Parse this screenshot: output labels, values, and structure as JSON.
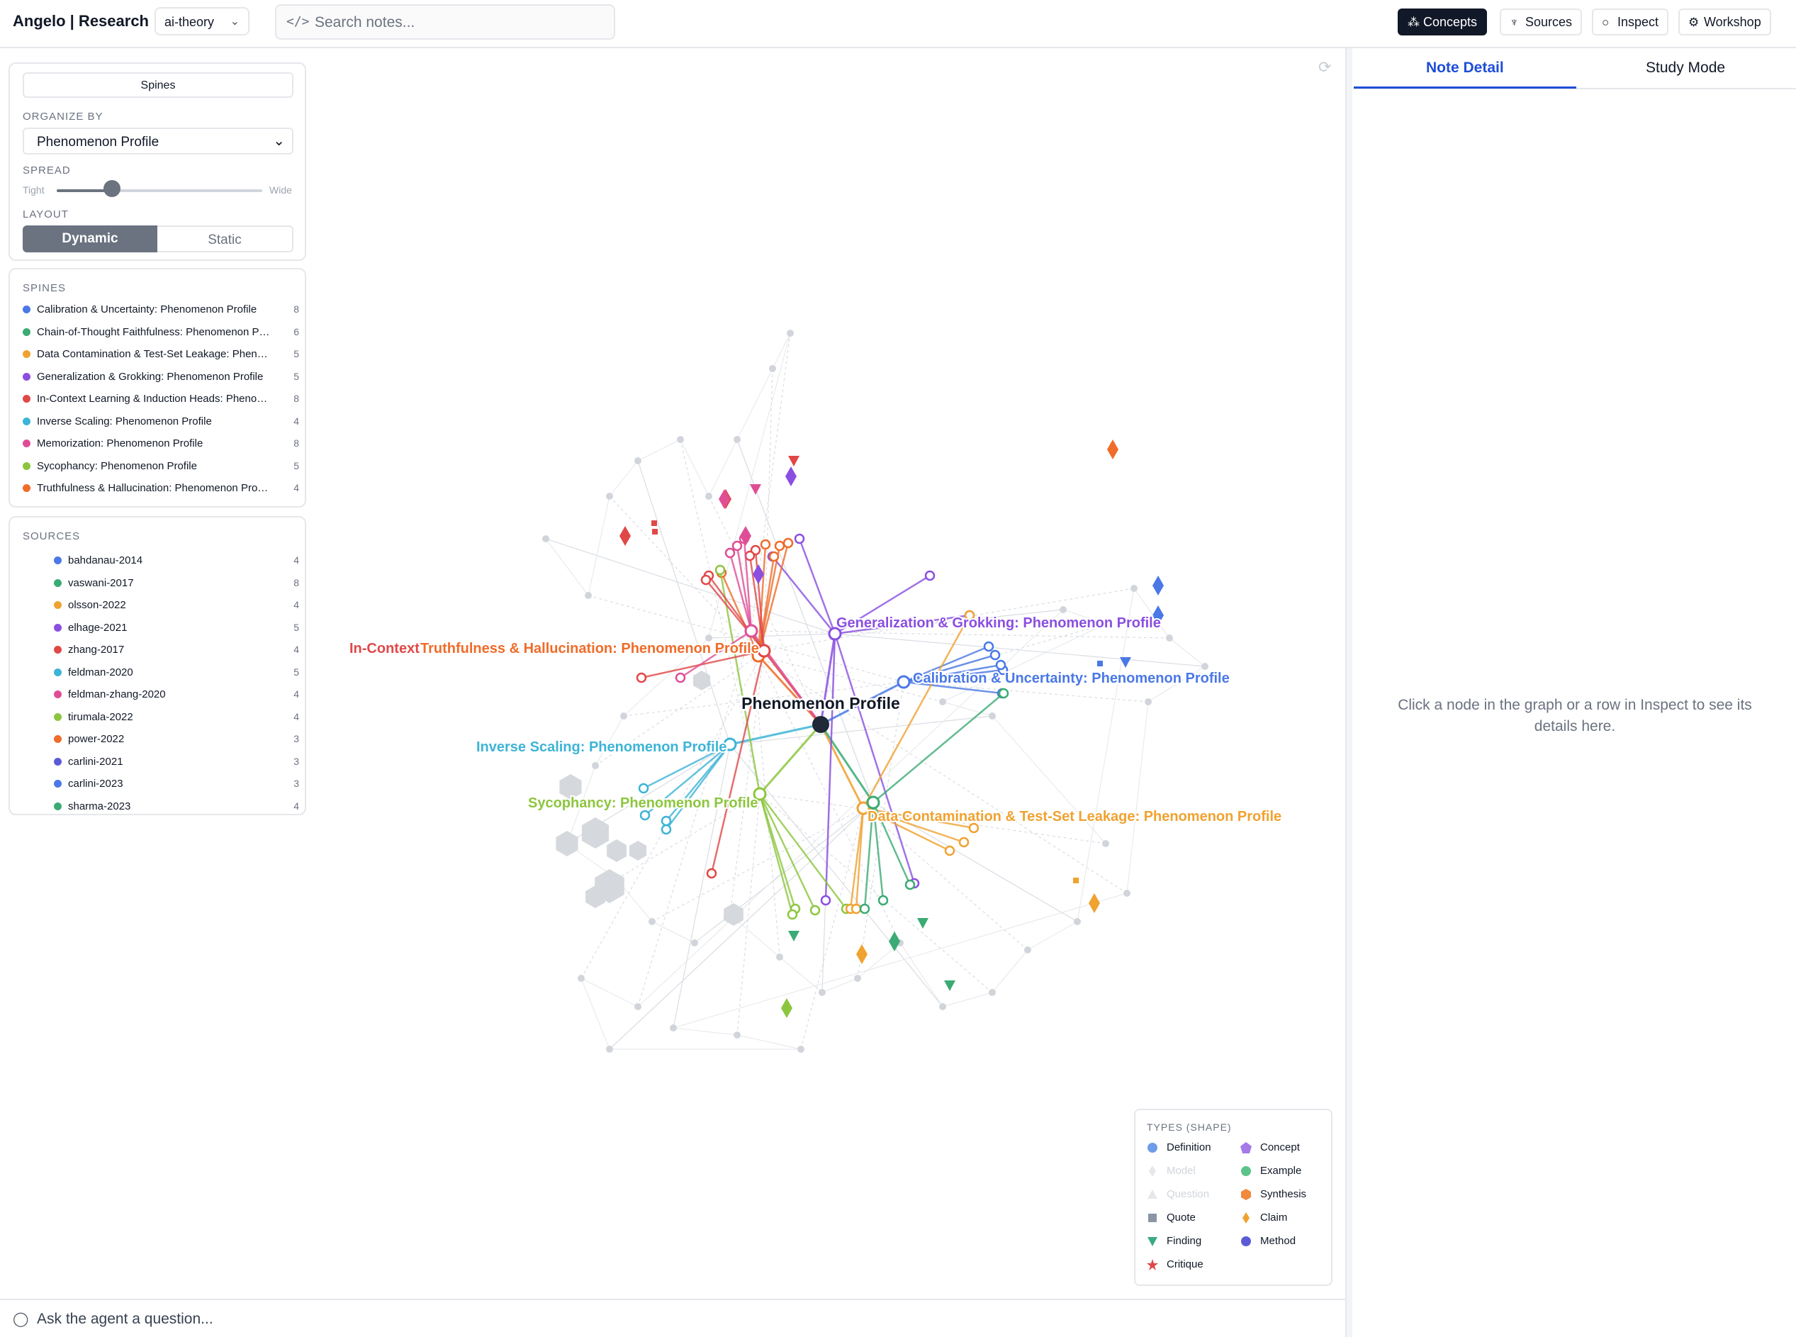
{
  "app": {
    "title": "Angelo | Research",
    "workspace": "ai-theory",
    "search_placeholder": "Search notes..."
  },
  "nav": [
    "Concepts",
    "Sources",
    "Inspect",
    "Workshop"
  ],
  "controls": {
    "spines_button": "Spines",
    "organize_label": "ORGANIZE BY",
    "organize_value": "Phenomenon Profile",
    "spread_label": "SPREAD",
    "spread_min": "Tight",
    "spread_max": "Wide",
    "spread_value": 0.27,
    "layout_label": "LAYOUT",
    "layout_options": [
      "Dynamic",
      "Static"
    ],
    "layout_selected": "Dynamic"
  },
  "spines": {
    "header": "SPINES",
    "items": [
      {
        "label": "Calibration & Uncertainty: Phenomenon Profile",
        "count": "8",
        "color": "#4a78e6"
      },
      {
        "label": "Chain-of-Thought Faithfulness: Phenomenon Profile",
        "count": "6",
        "color": "#3aab74"
      },
      {
        "label": "Data Contamination & Test-Set Leakage: Phenomenon Profile",
        "count": "5",
        "color": "#f0a230"
      },
      {
        "label": "Generalization & Grokking: Phenomenon Profile",
        "count": "5",
        "color": "#8a4fe0"
      },
      {
        "label": "In-Context Learning & Induction Heads: Phenomenon Profile",
        "count": "8",
        "color": "#e04848"
      },
      {
        "label": "Inverse Scaling: Phenomenon Profile",
        "count": "4",
        "color": "#3db4d6"
      },
      {
        "label": "Memorization: Phenomenon Profile",
        "count": "8",
        "color": "#df4e95"
      },
      {
        "label": "Sycophancy: Phenomenon Profile",
        "count": "5",
        "color": "#8cc63e"
      },
      {
        "label": "Truthfulness & Hallucination: Phenomenon Profile",
        "count": "4",
        "color": "#ef6c2a"
      }
    ]
  },
  "sources": {
    "header": "SOURCES",
    "items": [
      {
        "label": "bahdanau-2014",
        "count": "4",
        "color": "#4a78e6"
      },
      {
        "label": "vaswani-2017",
        "count": "8",
        "color": "#3aab74"
      },
      {
        "label": "olsson-2022",
        "count": "4",
        "color": "#f0a230"
      },
      {
        "label": "elhage-2021",
        "count": "5",
        "color": "#8a4fe0"
      },
      {
        "label": "zhang-2017",
        "count": "4",
        "color": "#e04848"
      },
      {
        "label": "feldman-2020",
        "count": "5",
        "color": "#3db4d6"
      },
      {
        "label": "feldman-zhang-2020",
        "count": "4",
        "color": "#df4e95"
      },
      {
        "label": "tirumala-2022",
        "count": "4",
        "color": "#8cc63e"
      },
      {
        "label": "power-2022",
        "count": "3",
        "color": "#ef6c2a"
      },
      {
        "label": "carlini-2021",
        "count": "3",
        "color": "#5b5bd6"
      },
      {
        "label": "carlini-2023",
        "count": "3",
        "color": "#4a78e6"
      },
      {
        "label": "sharma-2023",
        "count": "4",
        "color": "#3aab74"
      }
    ]
  },
  "graph": {
    "center_label": "Phenomenon Profile",
    "spine_labels": [
      {
        "text": "Generalization & Grokking: Phenomenon Profile",
        "color": "#8a4fe0"
      },
      {
        "text": "Calibration & Uncertainty: Phenomenon Profile",
        "color": "#4a78e6"
      },
      {
        "text": "In-Context",
        "color": "#e04848"
      },
      {
        "text": "Truthfulness & Hallucination: Phenomenon Profile",
        "color": "#ef6c2a"
      },
      {
        "text": "Inverse Scaling: Phenomenon Profile",
        "color": "#3db4d6"
      },
      {
        "text": "Sycophancy: Phenomenon Profile",
        "color": "#8cc63e"
      },
      {
        "text": "Data Contamination & Test-Set Leakage: Phenomenon Profile",
        "color": "#f0a230"
      }
    ]
  },
  "legend": {
    "title": "TYPES (SHAPE)",
    "items": [
      {
        "label": "Definition",
        "shape": "circle",
        "color": "#6f9ce8",
        "faded": false
      },
      {
        "label": "Concept",
        "shape": "pentagon",
        "color": "#a57ae8",
        "faded": false
      },
      {
        "label": "Model",
        "shape": "diamond",
        "color": "#e5e7eb",
        "faded": true
      },
      {
        "label": "Example",
        "shape": "circle",
        "color": "#5cc48b",
        "faded": false
      },
      {
        "label": "Question",
        "shape": "triangle",
        "color": "#e5e7eb",
        "faded": true
      },
      {
        "label": "Synthesis",
        "shape": "hexagon",
        "color": "#f08a3c",
        "faded": false
      },
      {
        "label": "Quote",
        "shape": "square",
        "color": "#8b95a5",
        "faded": false
      },
      {
        "label": "Claim",
        "shape": "diamond",
        "color": "#f0a230",
        "faded": false
      },
      {
        "label": "Finding",
        "shape": "triangle-down",
        "color": "#3aab84",
        "faded": false
      },
      {
        "label": "Method",
        "shape": "circle",
        "color": "#5b5bd6",
        "faded": false
      },
      {
        "label": "Critique",
        "shape": "star",
        "color": "#e04848",
        "faded": false
      }
    ]
  },
  "detail": {
    "tabs": [
      "Note Detail",
      "Study Mode"
    ],
    "empty_message": "Click a node in the graph or a row in Inspect to see its details here."
  },
  "agent": {
    "placeholder": "Ask the agent a question..."
  }
}
